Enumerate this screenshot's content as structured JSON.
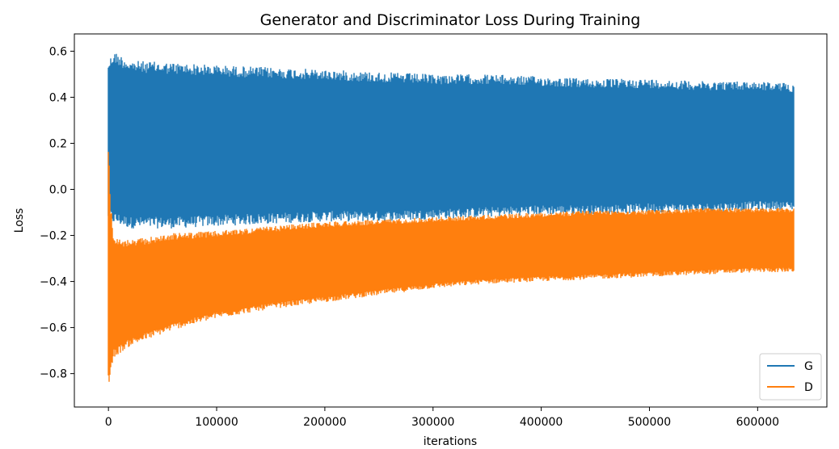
{
  "chart_data": {
    "type": "area",
    "title": "Generator and Discriminator Loss During Training",
    "xlabel": "iterations",
    "ylabel": "Loss",
    "xlim": [
      -31500,
      664000
    ],
    "ylim": [
      -0.945,
      0.675
    ],
    "xticks": [
      0,
      100000,
      200000,
      300000,
      400000,
      500000,
      600000
    ],
    "xtick_labels": [
      "0",
      "100000",
      "200000",
      "300000",
      "400000",
      "500000",
      "600000"
    ],
    "yticks": [
      -0.8,
      -0.6,
      -0.4,
      -0.2,
      0.0,
      0.2,
      0.4,
      0.6
    ],
    "ytick_labels": [
      "−0.8",
      "−0.6",
      "−0.4",
      "−0.2",
      "0.0",
      "0.2",
      "0.4",
      "0.6"
    ],
    "grid": false,
    "legend": {
      "position": "lower-right"
    },
    "x_max": 633000,
    "series": [
      {
        "name": "G",
        "color": "#1f77b4",
        "render": "oscillating band",
        "upper_envelope": [
          [
            0,
            0.56
          ],
          [
            5000,
            0.6
          ],
          [
            20000,
            0.56
          ],
          [
            60000,
            0.55
          ],
          [
            100000,
            0.54
          ],
          [
            150000,
            0.53
          ],
          [
            200000,
            0.52
          ],
          [
            250000,
            0.51
          ],
          [
            300000,
            0.5
          ],
          [
            350000,
            0.5
          ],
          [
            400000,
            0.49
          ],
          [
            450000,
            0.48
          ],
          [
            500000,
            0.48
          ],
          [
            550000,
            0.47
          ],
          [
            600000,
            0.47
          ],
          [
            633000,
            0.46
          ]
        ],
        "lower_envelope": [
          [
            0,
            -0.13
          ],
          [
            5000,
            -0.15
          ],
          [
            20000,
            -0.17
          ],
          [
            60000,
            -0.17
          ],
          [
            100000,
            -0.16
          ],
          [
            150000,
            -0.15
          ],
          [
            200000,
            -0.14
          ],
          [
            250000,
            -0.14
          ],
          [
            300000,
            -0.13
          ],
          [
            350000,
            -0.12
          ],
          [
            400000,
            -0.11
          ],
          [
            450000,
            -0.11
          ],
          [
            500000,
            -0.1
          ],
          [
            550000,
            -0.1
          ],
          [
            600000,
            -0.09
          ],
          [
            633000,
            -0.09
          ]
        ]
      },
      {
        "name": "D",
        "color": "#ff7f0e",
        "render": "oscillating band",
        "upper_envelope": [
          [
            0,
            0.2
          ],
          [
            2000,
            -0.05
          ],
          [
            5000,
            -0.21
          ],
          [
            20000,
            -0.22
          ],
          [
            60000,
            -0.19
          ],
          [
            100000,
            -0.18
          ],
          [
            150000,
            -0.16
          ],
          [
            200000,
            -0.14
          ],
          [
            250000,
            -0.13
          ],
          [
            300000,
            -0.12
          ],
          [
            350000,
            -0.11
          ],
          [
            400000,
            -0.1
          ],
          [
            450000,
            -0.09
          ],
          [
            500000,
            -0.09
          ],
          [
            550000,
            -0.08
          ],
          [
            600000,
            -0.08
          ],
          [
            633000,
            -0.08
          ]
        ],
        "lower_envelope": [
          [
            0,
            -0.86
          ],
          [
            5000,
            -0.73
          ],
          [
            20000,
            -0.68
          ],
          [
            60000,
            -0.61
          ],
          [
            100000,
            -0.56
          ],
          [
            150000,
            -0.52
          ],
          [
            200000,
            -0.49
          ],
          [
            250000,
            -0.46
          ],
          [
            300000,
            -0.43
          ],
          [
            350000,
            -0.41
          ],
          [
            400000,
            -0.4
          ],
          [
            450000,
            -0.39
          ],
          [
            500000,
            -0.38
          ],
          [
            550000,
            -0.37
          ],
          [
            600000,
            -0.36
          ],
          [
            633000,
            -0.36
          ]
        ]
      }
    ]
  }
}
